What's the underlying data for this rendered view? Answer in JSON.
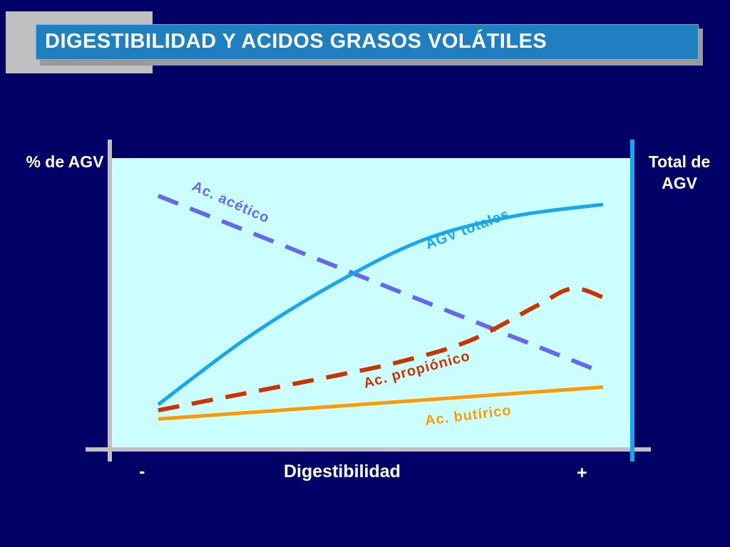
{
  "page": {
    "title": "DIGESTIBILIDAD Y ACIDOS GRASOS VOLÁTILES",
    "background": "#000066",
    "title_bar_color": "#1f7fc0"
  },
  "chart_data": {
    "type": "line",
    "title": "",
    "xlabel": "Digestibilidad",
    "x_tick_labels": [
      "-",
      "+"
    ],
    "ylabel_left": "% de AGV",
    "ylabel_right": "Total de AGV",
    "xlim": [
      0,
      1
    ],
    "ylim": [
      0,
      1
    ],
    "grid": false,
    "plot_background": "#ccffff",
    "series": [
      {
        "name": "Ac. acético",
        "color": "#6666ee",
        "style": "dashed",
        "axis": "left",
        "x": [
          0,
          1
        ],
        "y": [
          0.87,
          0.26
        ]
      },
      {
        "name": "AGV totales",
        "color": "#1aa6ea",
        "style": "solid",
        "axis": "right",
        "x": [
          0,
          0.2,
          0.4,
          0.6,
          0.8,
          1
        ],
        "y": [
          0.15,
          0.38,
          0.57,
          0.72,
          0.8,
          0.84
        ]
      },
      {
        "name": "Ac. propiónico",
        "color": "#cc3300",
        "style": "dashed",
        "axis": "left",
        "x": [
          0,
          0.2,
          0.4,
          0.55,
          0.7,
          0.85,
          0.93,
          1
        ],
        "y": [
          0.13,
          0.19,
          0.25,
          0.3,
          0.37,
          0.49,
          0.55,
          0.52
        ]
      },
      {
        "name": "Ac. butírico",
        "color": "#ff9900",
        "style": "solid",
        "axis": "left",
        "x": [
          0,
          1
        ],
        "y": [
          0.1,
          0.21
        ]
      }
    ]
  }
}
